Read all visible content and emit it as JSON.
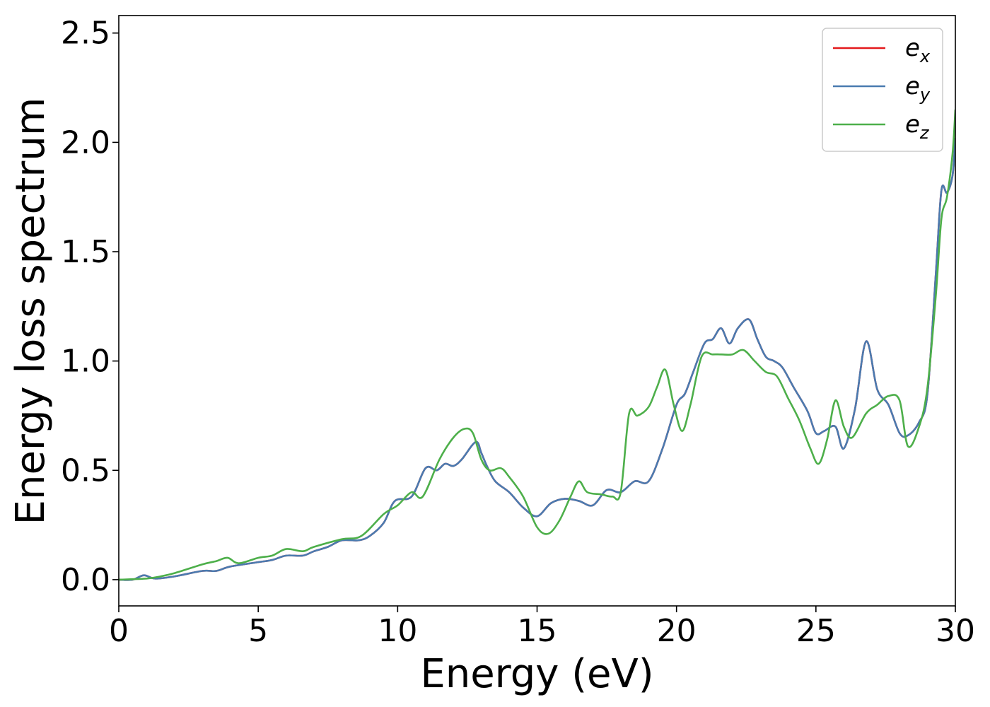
{
  "chart_data": {
    "type": "line",
    "title": "",
    "xlabel": "Energy (eV)",
    "ylabel": "Energy loss spectrum",
    "xlim": [
      0,
      30
    ],
    "ylim": [
      -0.12,
      2.58
    ],
    "xticks": [
      0,
      5,
      10,
      15,
      20,
      25,
      30
    ],
    "yticks": [
      0.0,
      0.5,
      1.0,
      1.5,
      2.0,
      2.5
    ],
    "xtick_labels": [
      "0",
      "5",
      "10",
      "15",
      "20",
      "25",
      "30"
    ],
    "ytick_labels": [
      "0.0",
      "0.5",
      "1.0",
      "1.5",
      "2.0",
      "2.5"
    ],
    "grid": false,
    "legend": {
      "placement": "top-right"
    },
    "series": [
      {
        "name": "e_x",
        "base": "e",
        "sub": "x",
        "color": "#e41a1c",
        "x": [
          0,
          0.5,
          0.9,
          1.3,
          2,
          3,
          3.5,
          4,
          5,
          5.5,
          6,
          6.6,
          7,
          7.5,
          8,
          8.6,
          9,
          9.5,
          9.9,
          10.5,
          11,
          11.4,
          11.7,
          12,
          12.3,
          12.8,
          13,
          13.2,
          13.5,
          14,
          14.5,
          15,
          15.5,
          16,
          16.5,
          17,
          17.5,
          18,
          18.5,
          19,
          19.5,
          20,
          20.3,
          20.6,
          21,
          21.3,
          21.6,
          21.9,
          22.2,
          22.6,
          22.9,
          23.2,
          23.5,
          23.8,
          24.2,
          24.7,
          25,
          25.3,
          25.7,
          26,
          26.4,
          26.8,
          27.2,
          27.6,
          28,
          28.3,
          28.7,
          29,
          29.3,
          29.5,
          29.7,
          29.9,
          30
        ],
        "values": [
          0,
          0,
          0.02,
          0.005,
          0.015,
          0.04,
          0.04,
          0.06,
          0.08,
          0.09,
          0.11,
          0.11,
          0.13,
          0.15,
          0.18,
          0.18,
          0.2,
          0.26,
          0.36,
          0.38,
          0.51,
          0.5,
          0.53,
          0.52,
          0.55,
          0.63,
          0.58,
          0.52,
          0.45,
          0.4,
          0.33,
          0.29,
          0.35,
          0.37,
          0.36,
          0.34,
          0.41,
          0.4,
          0.45,
          0.45,
          0.6,
          0.8,
          0.85,
          0.95,
          1.08,
          1.1,
          1.15,
          1.08,
          1.15,
          1.19,
          1.1,
          1.02,
          1.0,
          0.97,
          0.88,
          0.77,
          0.67,
          0.68,
          0.7,
          0.6,
          0.78,
          1.09,
          0.87,
          0.8,
          0.67,
          0.66,
          0.72,
          0.85,
          1.4,
          1.78,
          1.77,
          1.85,
          2.02
        ]
      },
      {
        "name": "e_y",
        "base": "e",
        "sub": "y",
        "color": "#4a7bb0",
        "x": [
          0,
          0.5,
          0.9,
          1.3,
          2,
          3,
          3.5,
          4,
          5,
          5.5,
          6,
          6.6,
          7,
          7.5,
          8,
          8.6,
          9,
          9.5,
          9.9,
          10.5,
          11,
          11.4,
          11.7,
          12,
          12.3,
          12.8,
          13,
          13.2,
          13.5,
          14,
          14.5,
          15,
          15.5,
          16,
          16.5,
          17,
          17.5,
          18,
          18.5,
          19,
          19.5,
          20,
          20.3,
          20.6,
          21,
          21.3,
          21.6,
          21.9,
          22.2,
          22.6,
          22.9,
          23.2,
          23.5,
          23.8,
          24.2,
          24.7,
          25,
          25.3,
          25.7,
          26,
          26.4,
          26.8,
          27.2,
          27.6,
          28,
          28.3,
          28.7,
          29,
          29.3,
          29.5,
          29.7,
          29.9,
          30
        ],
        "values": [
          0,
          0,
          0.02,
          0.005,
          0.015,
          0.04,
          0.04,
          0.06,
          0.08,
          0.09,
          0.11,
          0.11,
          0.13,
          0.15,
          0.18,
          0.18,
          0.2,
          0.26,
          0.36,
          0.38,
          0.51,
          0.5,
          0.53,
          0.52,
          0.55,
          0.63,
          0.58,
          0.52,
          0.45,
          0.4,
          0.33,
          0.29,
          0.35,
          0.37,
          0.36,
          0.34,
          0.41,
          0.4,
          0.45,
          0.45,
          0.6,
          0.8,
          0.85,
          0.95,
          1.08,
          1.1,
          1.15,
          1.08,
          1.15,
          1.19,
          1.1,
          1.02,
          1.0,
          0.97,
          0.88,
          0.77,
          0.67,
          0.68,
          0.7,
          0.6,
          0.78,
          1.09,
          0.87,
          0.8,
          0.67,
          0.66,
          0.72,
          0.85,
          1.4,
          1.78,
          1.77,
          1.85,
          2.02
        ]
      },
      {
        "name": "e_z",
        "base": "e",
        "sub": "z",
        "color": "#4daf4a",
        "x": [
          0,
          1,
          1.5,
          2,
          3,
          3.5,
          3.9,
          4.3,
          5,
          5.5,
          6,
          6.6,
          7,
          8,
          8.7,
          9.5,
          10,
          10.5,
          10.9,
          11.5,
          12,
          12.4,
          12.7,
          13,
          13.3,
          13.7,
          14,
          14.5,
          15,
          15.4,
          15.8,
          16.2,
          16.5,
          16.8,
          17.3,
          17.7,
          18,
          18.3,
          18.6,
          19,
          19.3,
          19.6,
          19.9,
          20.2,
          20.5,
          20.9,
          21.3,
          21.6,
          22,
          22.4,
          22.8,
          23.2,
          23.6,
          24,
          24.4,
          24.8,
          25.1,
          25.4,
          25.7,
          26,
          26.3,
          26.8,
          27.2,
          27.6,
          28,
          28.3,
          28.7,
          29,
          29.3,
          29.5,
          29.7,
          29.9,
          30
        ],
        "values": [
          0,
          0.005,
          0.015,
          0.03,
          0.07,
          0.085,
          0.1,
          0.075,
          0.1,
          0.11,
          0.14,
          0.13,
          0.15,
          0.185,
          0.2,
          0.3,
          0.34,
          0.4,
          0.38,
          0.55,
          0.65,
          0.69,
          0.67,
          0.55,
          0.5,
          0.51,
          0.47,
          0.38,
          0.24,
          0.21,
          0.27,
          0.38,
          0.45,
          0.4,
          0.39,
          0.38,
          0.4,
          0.76,
          0.75,
          0.79,
          0.88,
          0.96,
          0.8,
          0.68,
          0.8,
          1.02,
          1.03,
          1.03,
          1.03,
          1.05,
          1.0,
          0.95,
          0.93,
          0.83,
          0.73,
          0.6,
          0.53,
          0.64,
          0.82,
          0.7,
          0.65,
          0.76,
          0.8,
          0.84,
          0.82,
          0.61,
          0.7,
          0.88,
          1.3,
          1.65,
          1.75,
          1.95,
          2.15
        ]
      }
    ]
  }
}
